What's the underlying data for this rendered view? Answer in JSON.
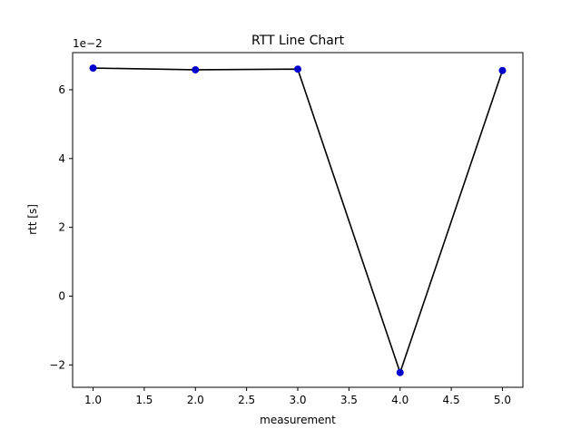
{
  "chart_data": {
    "type": "line",
    "title": "RTT Line Chart",
    "xlabel": "measurement",
    "ylabel": "rtt [s]",
    "y_offset_label": "1e−2",
    "y_scale_factor": 0.01,
    "xlim": [
      0.8,
      5.2
    ],
    "ylim": [
      -0.0265,
      0.0708
    ],
    "x_ticks": [
      1.0,
      1.5,
      2.0,
      2.5,
      3.0,
      3.5,
      4.0,
      4.5,
      5.0
    ],
    "x_tick_labels": [
      "1.0",
      "1.5",
      "2.0",
      "2.5",
      "3.0",
      "3.5",
      "4.0",
      "4.5",
      "5.0"
    ],
    "y_ticks": [
      -0.02,
      0.0,
      0.02,
      0.04,
      0.06
    ],
    "y_tick_labels": [
      "−2",
      "0",
      "2",
      "4",
      "6"
    ],
    "grid": false,
    "legend": "none",
    "line_color": "#000000",
    "marker_color": "#0000cc",
    "series": [
      {
        "x": [
          1,
          2,
          3,
          4,
          5
        ],
        "y": [
          0.0663,
          0.0658,
          0.066,
          -0.0222,
          0.0656
        ]
      }
    ]
  }
}
